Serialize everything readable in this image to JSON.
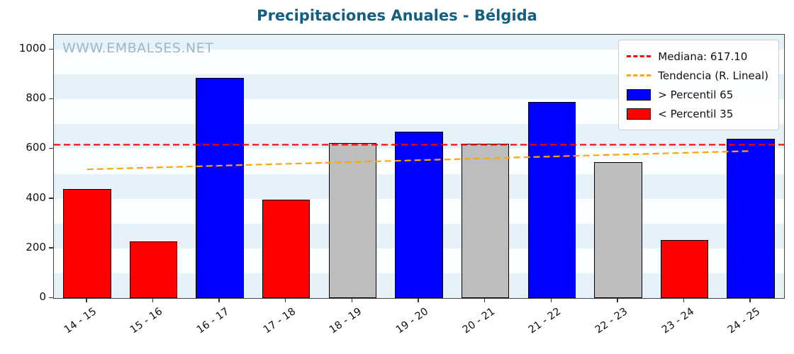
{
  "title": "Precipitaciones Anuales - Bélgida",
  "watermark": "WWW.EMBALSES.NET",
  "legend": {
    "median_label": "Mediana: 617.10",
    "trend_label": "Tendencia (R. Lineal)",
    "high_label": "> Percentil 65",
    "low_label": "< Percentil 35"
  },
  "colors": {
    "high": "#0000ff",
    "low": "#ff0000",
    "mid": "#bdbdbd",
    "median_line": "#ff0000",
    "trend_line": "#ffa500",
    "stripe_blue": "#e7f2f8",
    "stripe_white": "#fbfeff",
    "title": "#155e7f"
  },
  "chart_data": {
    "type": "bar",
    "title": "Precipitaciones Anuales - Bélgida",
    "categories": [
      "14 - 15",
      "15 - 16",
      "16 - 17",
      "17 - 18",
      "18 - 19",
      "19 - 20",
      "20 - 21",
      "21 - 22",
      "22 - 23",
      "23 - 24",
      "24 - 25"
    ],
    "values": [
      440,
      228,
      885,
      395,
      625,
      670,
      620,
      790,
      547,
      235,
      640
    ],
    "bar_classes": [
      "low",
      "low",
      "high",
      "low",
      "mid",
      "high",
      "mid",
      "high",
      "mid",
      "low",
      "high"
    ],
    "median": 617.1,
    "trend": {
      "start": 518,
      "end": 592
    },
    "ylim": [
      0,
      1060
    ],
    "yticks": [
      0,
      200,
      400,
      600,
      800,
      1000
    ],
    "xlabel": "",
    "ylabel": "",
    "legend_position": "top-right",
    "grid": "striped-bands"
  }
}
